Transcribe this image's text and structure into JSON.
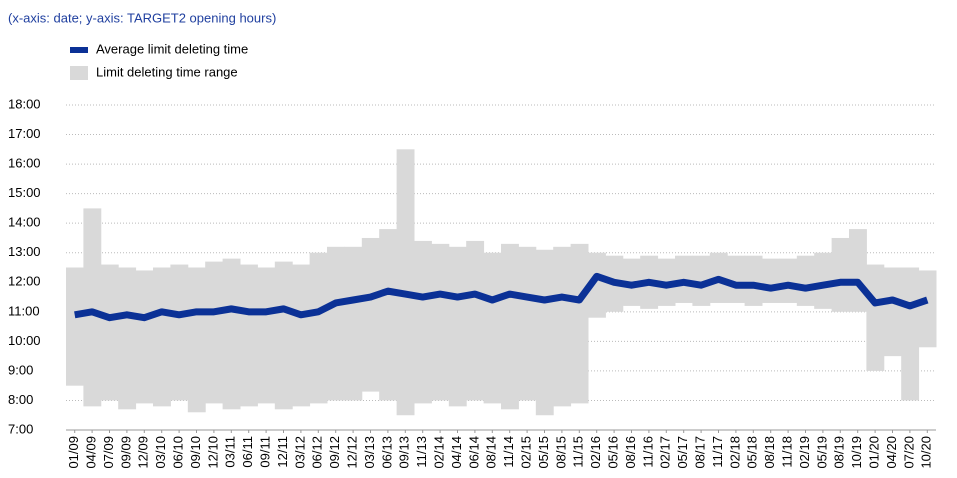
{
  "chart_data": {
    "type": "line-range",
    "subtitle": "(x-axis: date; y-axis: TARGET2 opening hours)",
    "categories": [
      "01/09",
      "04/09",
      "07/09",
      "09/09",
      "12/09",
      "03/10",
      "06/10",
      "09/10",
      "12/10",
      "03/11",
      "06/11",
      "09/11",
      "12/11",
      "03/12",
      "06/12",
      "09/12",
      "12/12",
      "03/13",
      "06/13",
      "09/13",
      "11/13",
      "02/14",
      "04/14",
      "06/14",
      "08/14",
      "11/14",
      "02/15",
      "05/15",
      "08/15",
      "11/15",
      "02/16",
      "05/16",
      "08/16",
      "11/16",
      "02/17",
      "05/17",
      "08/17",
      "11/17",
      "02/18",
      "05/18",
      "08/18",
      "11/18",
      "02/19",
      "05/19",
      "08/19",
      "10/19",
      "01/20",
      "04/20",
      "07/20",
      "10/20"
    ],
    "series": [
      {
        "name": "Average limit deleting time",
        "color": "#0b3196",
        "values": [
          10.9,
          11.0,
          10.8,
          10.9,
          10.8,
          11.0,
          10.9,
          11.0,
          11.0,
          11.1,
          11.0,
          11.0,
          11.1,
          10.9,
          11.0,
          11.3,
          11.4,
          11.5,
          11.7,
          11.6,
          11.5,
          11.6,
          11.5,
          11.6,
          11.4,
          11.6,
          11.5,
          11.4,
          11.5,
          11.4,
          12.2,
          12.0,
          11.9,
          12.0,
          11.9,
          12.0,
          11.9,
          12.1,
          11.9,
          11.9,
          11.8,
          11.9,
          11.8,
          11.9,
          12.0,
          12.0,
          11.3,
          11.4,
          11.2,
          11.4
        ]
      },
      {
        "name": "Limit deleting time range",
        "color": "#d9d9d9",
        "low": [
          8.5,
          7.8,
          8.0,
          7.7,
          7.9,
          7.8,
          8.0,
          7.6,
          7.9,
          7.7,
          7.8,
          7.9,
          7.7,
          7.8,
          7.9,
          8.0,
          8.0,
          8.3,
          8.0,
          7.5,
          7.9,
          8.0,
          7.8,
          8.0,
          7.9,
          7.7,
          8.0,
          7.5,
          7.8,
          7.9,
          10.8,
          11.0,
          11.2,
          11.1,
          11.2,
          11.3,
          11.2,
          11.3,
          11.3,
          11.2,
          11.3,
          11.3,
          11.2,
          11.1,
          11.0,
          11.0,
          9.0,
          9.5,
          8.0,
          9.8
        ],
        "high": [
          12.5,
          14.5,
          12.6,
          12.5,
          12.4,
          12.5,
          12.6,
          12.5,
          12.7,
          12.8,
          12.6,
          12.5,
          12.7,
          12.6,
          13.0,
          13.2,
          13.2,
          13.5,
          13.8,
          16.5,
          13.4,
          13.3,
          13.2,
          13.4,
          13.0,
          13.3,
          13.2,
          13.1,
          13.2,
          13.3,
          13.0,
          12.9,
          12.8,
          12.9,
          12.8,
          12.9,
          12.9,
          13.0,
          12.9,
          12.9,
          12.8,
          12.8,
          12.9,
          13.0,
          13.5,
          13.8,
          12.6,
          12.5,
          12.5,
          12.4
        ]
      }
    ],
    "ylim": [
      7,
      18
    ],
    "yticks": [
      {
        "value": 7,
        "label": "7:00"
      },
      {
        "value": 8,
        "label": "8:00"
      },
      {
        "value": 9,
        "label": "9:00"
      },
      {
        "value": 10,
        "label": "10:00"
      },
      {
        "value": 11,
        "label": "11:00"
      },
      {
        "value": 12,
        "label": "12:00"
      },
      {
        "value": 13,
        "label": "13:00"
      },
      {
        "value": 14,
        "label": "14:00"
      },
      {
        "value": 15,
        "label": "15:00"
      },
      {
        "value": 16,
        "label": "16:00"
      },
      {
        "value": 17,
        "label": "17:00"
      },
      {
        "value": 18,
        "label": "18:00"
      }
    ],
    "grid": true
  }
}
